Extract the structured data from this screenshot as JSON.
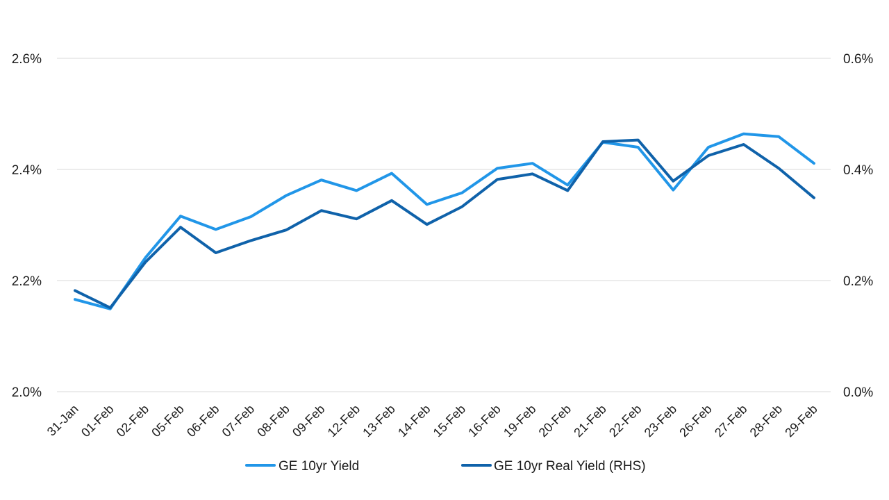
{
  "chart_data": {
    "type": "line",
    "title": "",
    "xlabel": "",
    "ylabel": "",
    "categories": [
      "31-Jan",
      "01-Feb",
      "02-Feb",
      "05-Feb",
      "06-Feb",
      "07-Feb",
      "08-Feb",
      "09-Feb",
      "12-Feb",
      "13-Feb",
      "14-Feb",
      "15-Feb",
      "16-Feb",
      "19-Feb",
      "20-Feb",
      "21-Feb",
      "22-Feb",
      "23-Feb",
      "26-Feb",
      "27-Feb",
      "28-Feb",
      "29-Feb"
    ],
    "y_left": {
      "ylim": [
        2.0,
        2.6
      ],
      "ticks": [
        "2.0%",
        "2.2%",
        "2.4%",
        "2.6%"
      ],
      "tick_values": [
        2.0,
        2.2,
        2.4,
        2.6
      ]
    },
    "y_right": {
      "ylim": [
        0.0,
        0.6
      ],
      "ticks": [
        "0.0%",
        "0.2%",
        "0.4%",
        "0.6%"
      ],
      "tick_values": [
        0.0,
        0.2,
        0.4,
        0.6
      ]
    },
    "grid": true,
    "legend_position": "bottom-center",
    "series": [
      {
        "name": "GE 10yr Yield",
        "axis": "left",
        "color": "#2196e8",
        "values": [
          2.166,
          2.149,
          2.241,
          2.316,
          2.292,
          2.315,
          2.353,
          2.381,
          2.362,
          2.393,
          2.337,
          2.358,
          2.402,
          2.411,
          2.372,
          2.449,
          2.44,
          2.363,
          2.44,
          2.464,
          2.459,
          2.411
        ]
      },
      {
        "name": "GE 10yr Real Yield (RHS)",
        "axis": "right",
        "color": "#0f62aa",
        "values": [
          0.182,
          0.151,
          0.233,
          0.296,
          0.25,
          0.272,
          0.291,
          0.326,
          0.311,
          0.344,
          0.301,
          0.333,
          0.382,
          0.392,
          0.362,
          0.45,
          0.453,
          0.379,
          0.425,
          0.445,
          0.402,
          0.349
        ]
      }
    ]
  }
}
